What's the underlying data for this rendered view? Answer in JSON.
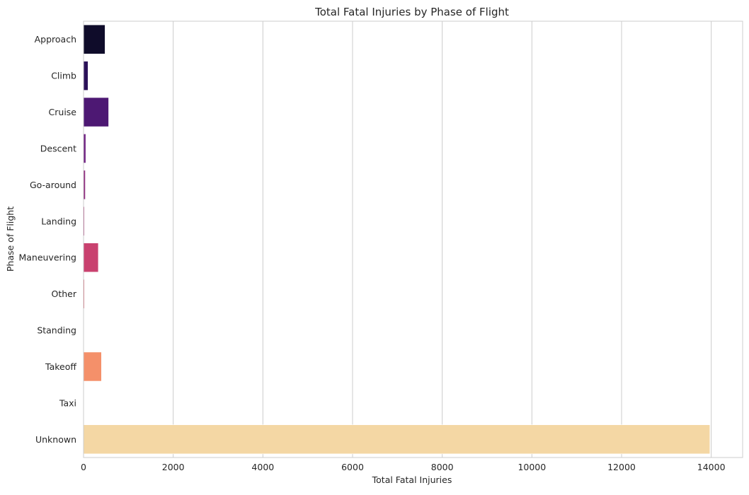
{
  "chart_data": {
    "type": "bar",
    "orientation": "horizontal",
    "title": "Total Fatal Injuries by Phase of Flight",
    "xlabel": "Total Fatal Injuries",
    "ylabel": "Phase of Flight",
    "categories": [
      "Approach",
      "Climb",
      "Cruise",
      "Descent",
      "Go-around",
      "Landing",
      "Maneuvering",
      "Other",
      "Standing",
      "Takeoff",
      "Taxi",
      "Unknown"
    ],
    "values": [
      480,
      100,
      560,
      50,
      40,
      20,
      330,
      20,
      5,
      400,
      5,
      13970
    ],
    "bar_colors": [
      "#0f0c2a",
      "#2b1159",
      "#4d1873",
      "#6e1f81",
      "#8f2a7f",
      "#b03478",
      "#c9416f",
      "#dd5566",
      "#ec6f64",
      "#f4906a",
      "#f8b07f",
      "#f4d7a4"
    ],
    "xlim": [
      0,
      14700
    ],
    "xticks": [
      0,
      2000,
      4000,
      6000,
      8000,
      10000,
      12000,
      14000
    ],
    "xtick_labels": [
      "0",
      "2000",
      "4000",
      "6000",
      "8000",
      "10000",
      "12000",
      "14000"
    ],
    "grid": "vertical",
    "grid_color": "#cccccc",
    "frame_color": "#cccccc"
  }
}
